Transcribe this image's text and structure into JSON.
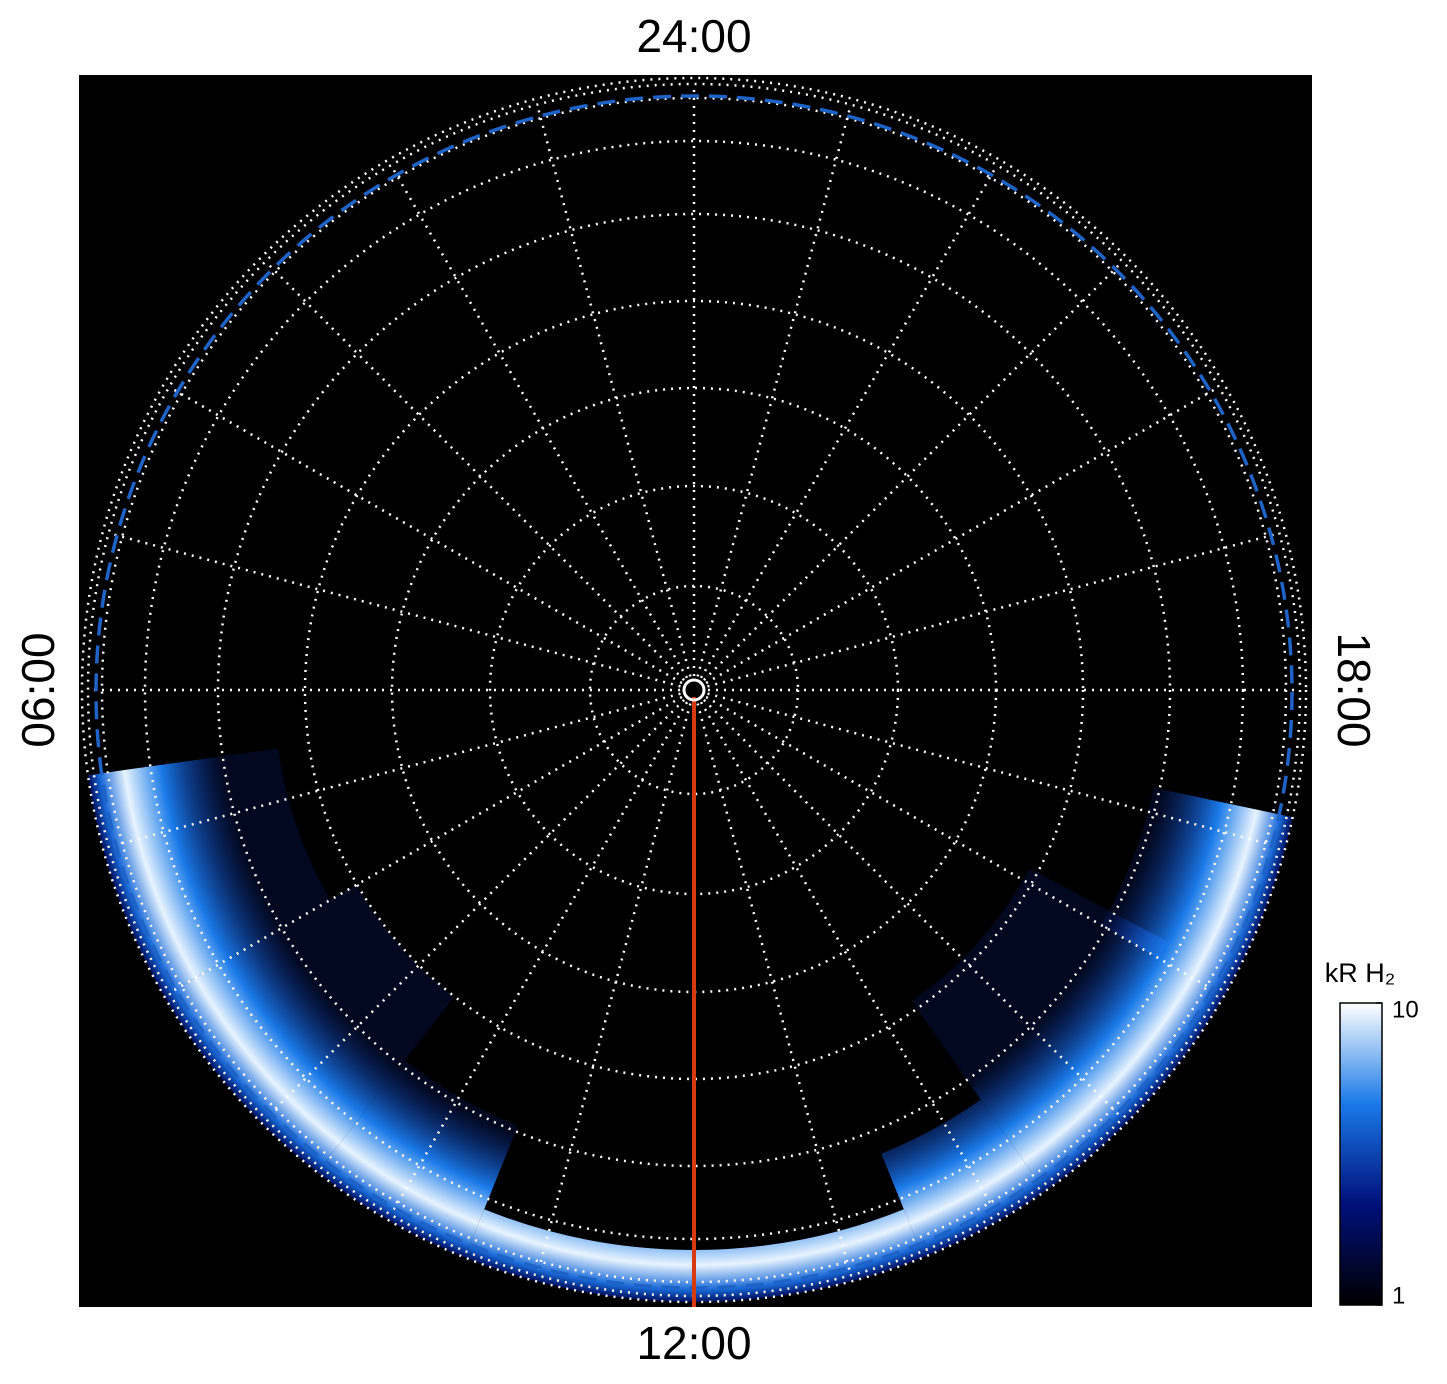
{
  "chart_data": {
    "type": "polar",
    "local_time_labels": [
      "24:00",
      "06:00",
      "12:00",
      "18:00"
    ],
    "colorbar": {
      "label": "kR H₂",
      "lim": [
        1,
        10
      ],
      "ticks": [
        1,
        10
      ],
      "log": true,
      "colors": [
        "#000000",
        "#00107a",
        "#1a7ae8",
        "#ffffff"
      ]
    }
  }
}
